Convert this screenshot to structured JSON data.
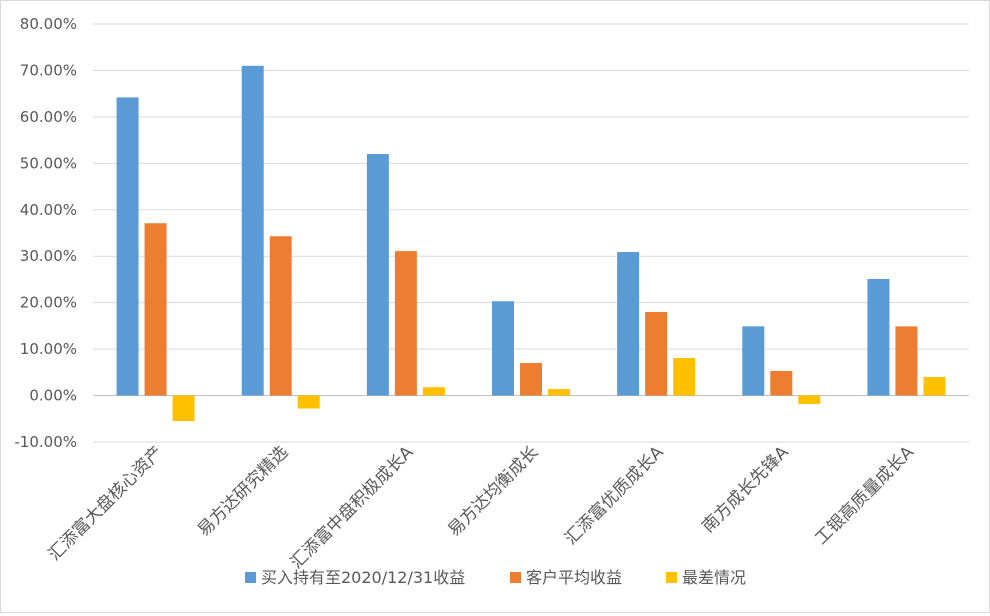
{
  "chart_data": {
    "type": "bar",
    "categories": [
      "汇添富大盘核心资产",
      "易方达研究精选",
      "汇添富中盘积极成长A",
      "易方达均衡成长",
      "汇添富优质成长A",
      "南方成长先锋A",
      "工银高质量成长A"
    ],
    "series": [
      {
        "name": "买入持有至2020/12/31收益",
        "color": "#5b9bd5",
        "values": [
          64.2,
          71.0,
          52.0,
          20.3,
          30.9,
          14.9,
          25.1
        ]
      },
      {
        "name": "客户平均收益",
        "color": "#ed7d31",
        "values": [
          37.1,
          34.3,
          31.1,
          7.0,
          18.0,
          5.3,
          14.9
        ]
      },
      {
        "name": "最差情况",
        "color": "#ffc000",
        "values": [
          -5.5,
          -2.8,
          1.8,
          1.4,
          8.1,
          -1.8,
          4.0
        ]
      }
    ],
    "ylim": [
      -10,
      80
    ],
    "yticks": [
      "-10.00%",
      "0.00%",
      "10.00%",
      "20.00%",
      "30.00%",
      "40.00%",
      "50.00%",
      "60.00%",
      "70.00%",
      "80.00%"
    ],
    "ytick_values": [
      -10,
      0,
      10,
      20,
      30,
      40,
      50,
      60,
      70,
      80
    ],
    "grid": true,
    "legend_position": "bottom",
    "title": "",
    "xlabel": "",
    "ylabel": ""
  }
}
